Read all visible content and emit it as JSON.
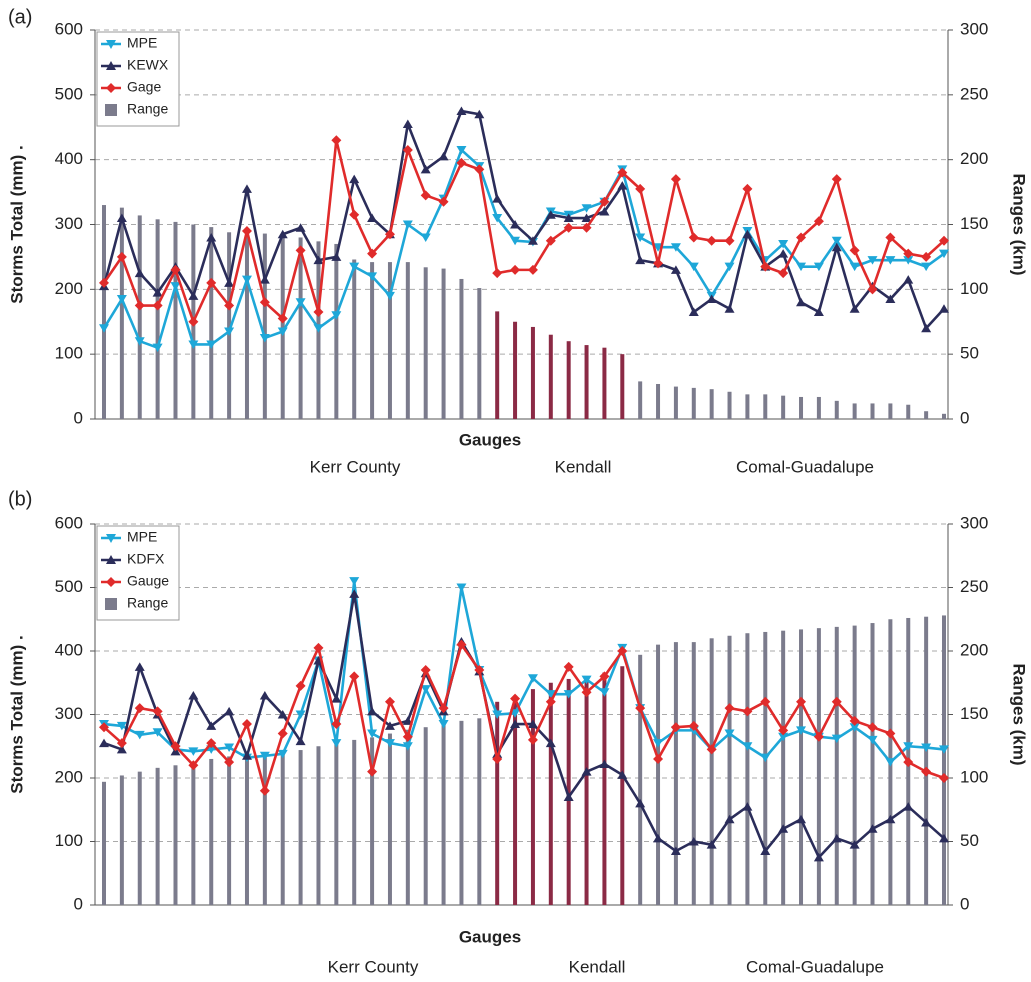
{
  "chart_data": [
    {
      "type": "combo",
      "label": "(a)",
      "x_label": "Gauges",
      "y_label": "Storms Total (mm) .",
      "y2_label": "Ranges (km)",
      "group_labels": [
        "Kerr County",
        "Kendall",
        "Comal-Guadalupe"
      ],
      "categories": [
        null,
        null,
        null,
        null,
        null,
        null,
        null,
        null,
        null,
        null,
        null,
        null,
        null,
        null,
        null,
        null,
        null,
        null,
        null,
        null,
        null,
        null,
        null,
        null,
        null,
        null,
        null,
        null,
        null,
        null,
        null,
        null,
        null,
        null,
        null,
        null,
        null,
        null,
        null,
        null,
        null,
        null,
        null,
        null,
        null,
        null,
        null,
        null
      ],
      "ylim": [
        0,
        600
      ],
      "yticks": [
        0,
        100,
        200,
        300,
        400,
        500,
        600
      ],
      "y2lim": [
        0,
        300
      ],
      "y2ticks": [
        0,
        50,
        100,
        150,
        200,
        250,
        300
      ],
      "grid": true,
      "legend": "upper left",
      "highlight_color": "#8b2a45",
      "series": [
        {
          "name": "MPE",
          "color": "#1ea7d8",
          "values": [
            140,
            185,
            120,
            110,
            205,
            115,
            115,
            135,
            215,
            125,
            135,
            180,
            140,
            160,
            235,
            220,
            190,
            300,
            280,
            340,
            415,
            390,
            310,
            275,
            273,
            320,
            315,
            325,
            335,
            385,
            280,
            265,
            265,
            235,
            190,
            235,
            290,
            245,
            270,
            235,
            235,
            275,
            235,
            245,
            245,
            245,
            235,
            255
          ]
        },
        {
          "name": "KEWX",
          "color": "#2b2d5a",
          "values": [
            205,
            310,
            225,
            195,
            235,
            190,
            280,
            210,
            355,
            215,
            285,
            295,
            245,
            250,
            370,
            310,
            285,
            455,
            385,
            405,
            475,
            470,
            340,
            300,
            275,
            315,
            310,
            310,
            320,
            360,
            245,
            240,
            230,
            165,
            185,
            170,
            285,
            235,
            255,
            180,
            165,
            265,
            170,
            205,
            185,
            215,
            140,
            170
          ]
        },
        {
          "name": "Gage",
          "color": "#e02b2b",
          "values": [
            210,
            250,
            175,
            175,
            230,
            150,
            210,
            175,
            290,
            180,
            155,
            260,
            165,
            430,
            315,
            255,
            285,
            415,
            345,
            335,
            395,
            385,
            225,
            230,
            230,
            275,
            295,
            295,
            335,
            380,
            355,
            240,
            370,
            280,
            275,
            275,
            355,
            235,
            225,
            280,
            305,
            370,
            260,
            200,
            280,
            255,
            250,
            275
          ]
        },
        {
          "name": "Range",
          "color": "#7b7b8c",
          "axis": "y2",
          "values": [
            165,
            163,
            157,
            154,
            152,
            150,
            148,
            144,
            144,
            143,
            142,
            140,
            137,
            135,
            123,
            121,
            121,
            121,
            117,
            116,
            108,
            101,
            83,
            75,
            71,
            65,
            60,
            57,
            55,
            50,
            29,
            27,
            25,
            24,
            23,
            21,
            19,
            19,
            18,
            17,
            17,
            14,
            12,
            12,
            12,
            11,
            6,
            4
          ]
        }
      ]
    },
    {
      "type": "combo",
      "label": "(b)",
      "x_label": "Gauges",
      "y_label": "Storms Total (mm) .",
      "y2_label": "Ranges (km)",
      "group_labels": [
        "Kerr County",
        "Kendall",
        "Comal-Guadalupe"
      ],
      "categories": [
        null,
        null,
        null,
        null,
        null,
        null,
        null,
        null,
        null,
        null,
        null,
        null,
        null,
        null,
        null,
        null,
        null,
        null,
        null,
        null,
        null,
        null,
        null,
        null,
        null,
        null,
        null,
        null,
        null,
        null,
        null,
        null,
        null,
        null,
        null,
        null,
        null,
        null,
        null,
        null,
        null,
        null,
        null,
        null,
        null,
        null,
        null,
        null
      ],
      "ylim": [
        0,
        600
      ],
      "yticks": [
        0,
        100,
        200,
        300,
        400,
        500,
        600
      ],
      "y2lim": [
        0,
        300
      ],
      "y2ticks": [
        0,
        50,
        100,
        150,
        200,
        250,
        300
      ],
      "grid": true,
      "legend": "upper left",
      "highlight_color": "#8b2a45",
      "series": [
        {
          "name": "MPE",
          "color": "#1ea7d8",
          "values": [
            285,
            282,
            268,
            272,
            245,
            242,
            245,
            248,
            232,
            235,
            238,
            300,
            385,
            255,
            510,
            270,
            255,
            250,
            340,
            285,
            500,
            370,
            300,
            302,
            357,
            332,
            332,
            355,
            335,
            405,
            310,
            255,
            275,
            275,
            245,
            270,
            250,
            232,
            265,
            275,
            265,
            262,
            280,
            260,
            225,
            250,
            248,
            245
          ]
        },
        {
          "name": "KDFX",
          "color": "#2b2d5a",
          "values": [
            255,
            245,
            375,
            300,
            242,
            330,
            282,
            305,
            235,
            330,
            300,
            258,
            385,
            325,
            490,
            305,
            282,
            290,
            365,
            305,
            415,
            368,
            238,
            285,
            285,
            255,
            170,
            210,
            222,
            205,
            160,
            105,
            85,
            100,
            95,
            135,
            155,
            85,
            120,
            135,
            75,
            105,
            95,
            120,
            135,
            155,
            130,
            105
          ]
        },
        {
          "name": "Gauge",
          "color": "#e02b2b",
          "values": [
            280,
            255,
            310,
            305,
            250,
            220,
            255,
            225,
            285,
            180,
            270,
            345,
            405,
            285,
            360,
            210,
            320,
            265,
            370,
            310,
            410,
            370,
            230,
            325,
            260,
            320,
            375,
            335,
            360,
            400,
            310,
            230,
            280,
            282,
            245,
            310,
            305,
            320,
            275,
            320,
            265,
            320,
            290,
            280,
            270,
            225,
            210,
            200
          ]
        },
        {
          "name": "Range",
          "color": "#7b7b8c",
          "axis": "y2",
          "values": [
            97,
            102,
            105,
            108,
            110,
            113,
            115,
            117,
            118,
            118,
            120,
            122,
            125,
            128,
            130,
            132,
            135,
            138,
            140,
            142,
            145,
            147,
            160,
            165,
            170,
            175,
            178,
            180,
            183,
            188,
            197,
            205,
            207,
            207,
            210,
            212,
            214,
            215,
            216,
            217,
            218,
            219,
            220,
            222,
            225,
            226,
            227,
            228
          ]
        }
      ]
    }
  ]
}
